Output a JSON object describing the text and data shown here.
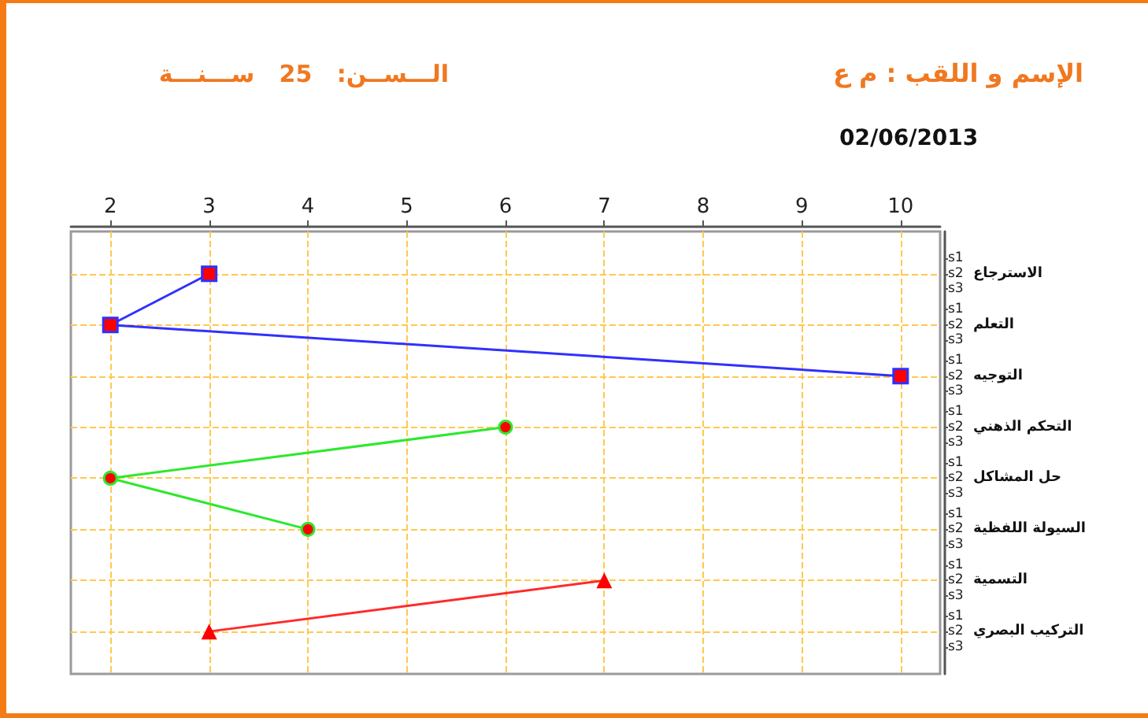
{
  "chart_data": {
    "type": "line",
    "orientation": "horizontal",
    "title": "الإسم و اللقب : م ع",
    "subtitle": "الـــســن:   25   ســـنـــة",
    "annotations": [
      "02/06/2013",
      "s1",
      "s2",
      "s3",
      "s1",
      "s2",
      "s3",
      "s1",
      "s2",
      "s3",
      "s1",
      "s2",
      "s3",
      "s1",
      "s2",
      "s3",
      "s1",
      "s2",
      "s3",
      "s1",
      "s2",
      "s3",
      "s1",
      "s2",
      "s3"
    ],
    "categories": [
      "الاسترجاع",
      "التعلم",
      "التوجيه",
      "التحكم الذهني",
      "حل المشاكل",
      "السيولة اللفظية",
      "التسمية",
      "التركيب البصري"
    ],
    "series": [
      {
        "color": "#3030ff",
        "marker": "square",
        "colors": [
          "#ff0000",
          "#ff0000",
          "#ff0000",
          null,
          null,
          null,
          null,
          null
        ],
        "values": [
          3,
          2,
          10,
          null,
          null,
          null,
          null,
          null
        ]
      },
      {
        "color": "#2ee82e",
        "marker": "circle",
        "colors": [
          null,
          null,
          null,
          "#ff0000",
          "#ff0000",
          "#ff0000",
          null,
          null
        ],
        "values": [
          null,
          null,
          null,
          6,
          2,
          4,
          null,
          null
        ]
      },
      {
        "color": "#ff2a2a",
        "marker": "triangle",
        "colors": [
          null,
          null,
          null,
          null,
          null,
          null,
          "#ff0000",
          "#ff0000"
        ],
        "values": [
          null,
          null,
          null,
          null,
          null,
          null,
          7,
          3
        ]
      }
    ],
    "xlim": [
      1.6,
      10.4
    ],
    "xticks": [
      2,
      3,
      4,
      5,
      6,
      7,
      8,
      9,
      10
    ],
    "grid": true
  }
}
